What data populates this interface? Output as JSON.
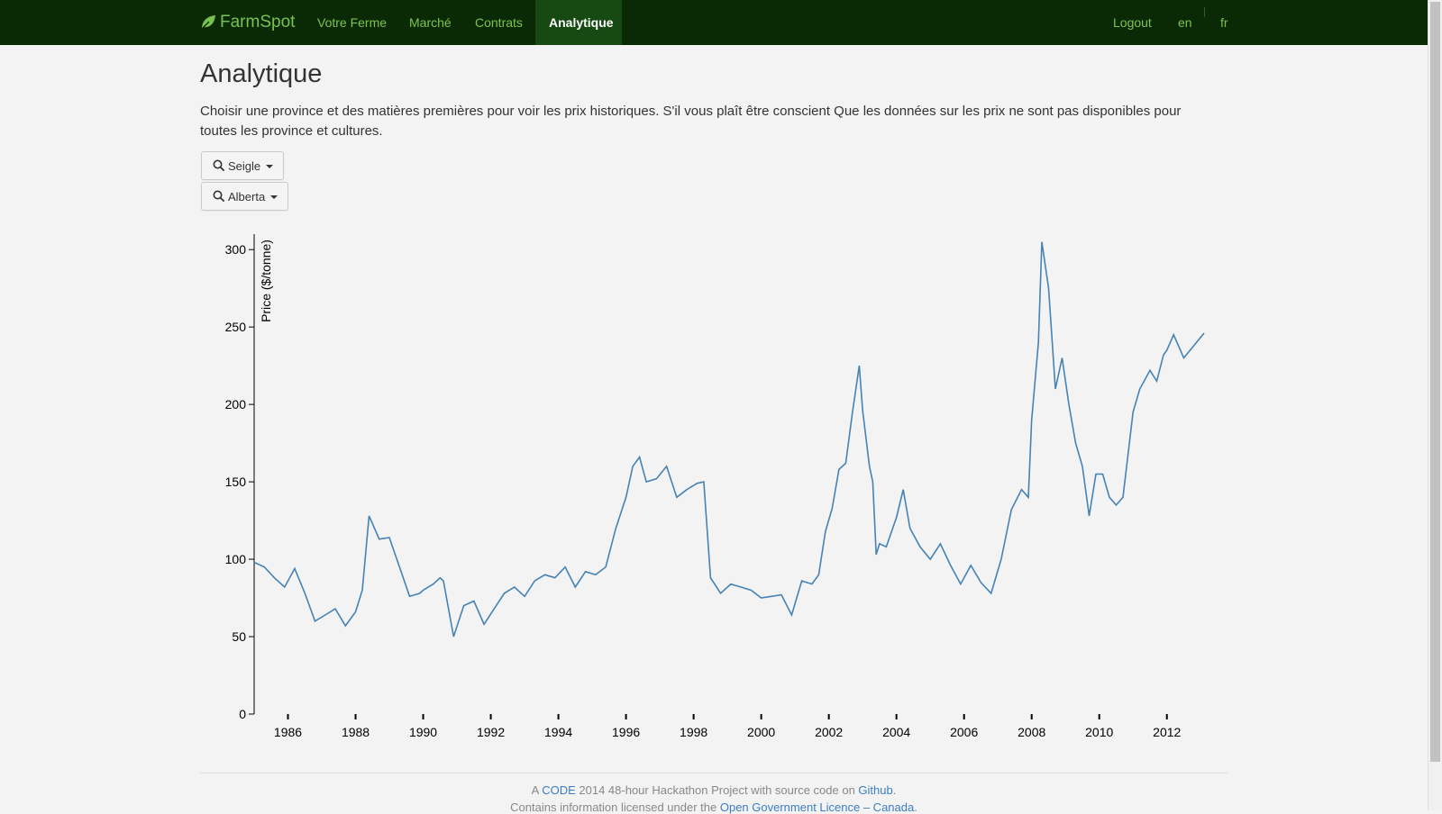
{
  "nav": {
    "brand": "FarmSpot",
    "items": [
      {
        "label": "Votre Ferme",
        "active": false
      },
      {
        "label": "Marché",
        "active": false
      },
      {
        "label": "Contrats",
        "active": false
      },
      {
        "label": "Analytique",
        "active": true
      }
    ],
    "logout": "Logout",
    "lang_en": "en",
    "lang_fr": "fr"
  },
  "page": {
    "title": "Analytique",
    "intro": "Choisir une province et des matières premières pour voir les prix historiques. S'il vous plaît être conscient Que les données sur les prix ne sont pas disponibles pour toutes les province et cultures.",
    "commodity_dropdown": "Seigle",
    "province_dropdown": "Alberta"
  },
  "chart_data": {
    "type": "line",
    "ylabel": "Price ($/tonne)",
    "xlabel": "",
    "ylim": [
      0,
      310
    ],
    "yticks": [
      0,
      50,
      100,
      150,
      200,
      250,
      300
    ],
    "xlim": [
      1985,
      2013.1
    ],
    "xticks": [
      "1986",
      "1988",
      "1990",
      "1992",
      "1994",
      "1996",
      "1998",
      "2000",
      "2002",
      "2004",
      "2006",
      "2008",
      "2010",
      "2012"
    ],
    "line_color": "#4682b4",
    "series": [
      {
        "x": [
          1985.0,
          1985.3,
          1985.6,
          1985.9,
          1986.2,
          1986.5,
          1986.8,
          1987.1,
          1987.4,
          1987.7,
          1988.0,
          1988.2,
          1988.4,
          1988.7,
          1989.0,
          1989.3,
          1989.6,
          1989.9,
          1990.0,
          1990.3,
          1990.5,
          1990.6,
          1990.9,
          1991.2,
          1991.5,
          1991.8,
          1992.1,
          1992.4,
          1992.7,
          1993.0,
          1993.3,
          1993.6,
          1993.9,
          1994.2,
          1994.5,
          1994.8,
          1995.1,
          1995.4,
          1995.7,
          1996.0,
          1996.2,
          1996.4,
          1996.6,
          1996.9,
          1997.2,
          1997.5,
          1997.8,
          1998.1,
          1998.3,
          1998.5,
          1998.8,
          1999.1,
          1999.4,
          1999.7,
          2000.0,
          2000.3,
          2000.6,
          2000.9,
          2001.2,
          2001.5,
          2001.7,
          2001.9,
          2002.1,
          2002.3,
          2002.5,
          2002.7,
          2002.9,
          2003.0,
          2003.2,
          2003.3,
          2003.4,
          2003.5,
          2003.7,
          2004.0,
          2004.2,
          2004.4,
          2004.7,
          2005.0,
          2005.3,
          2005.6,
          2005.9,
          2006.2,
          2006.5,
          2006.8,
          2007.1,
          2007.4,
          2007.7,
          2007.9,
          2008.0,
          2008.2,
          2008.3,
          2008.5,
          2008.7,
          2008.9,
          2009.1,
          2009.3,
          2009.5,
          2009.7,
          2009.9,
          2010.1,
          2010.3,
          2010.5,
          2010.7,
          2011.0,
          2011.2,
          2011.5,
          2011.7,
          2011.9,
          2012.0,
          2012.2,
          2012.5,
          2013.1
        ],
        "values": [
          98,
          95,
          88,
          82,
          94,
          78,
          60,
          64,
          68,
          57,
          66,
          80,
          128,
          113,
          114,
          95,
          76,
          78,
          80,
          84,
          88,
          86,
          50,
          70,
          73,
          58,
          68,
          78,
          82,
          76,
          86,
          90,
          88,
          95,
          82,
          92,
          90,
          95,
          120,
          140,
          160,
          166,
          150,
          152,
          160,
          140,
          145,
          149,
          150,
          88,
          78,
          84,
          82,
          80,
          75,
          76,
          77,
          64,
          86,
          84,
          90,
          118,
          133,
          158,
          162,
          195,
          225,
          196,
          160,
          150,
          103,
          110,
          108,
          127,
          145,
          120,
          108,
          100,
          110,
          96,
          84,
          96,
          85,
          78,
          100,
          132,
          145,
          140,
          190,
          240,
          305,
          275,
          210,
          230,
          200,
          175,
          160,
          128,
          155,
          155,
          140,
          135,
          140,
          195,
          210,
          222,
          215,
          232,
          235,
          245,
          230,
          246
        ]
      }
    ]
  },
  "footer": {
    "line1_prefix": "A ",
    "line1_link1": "CODE",
    "line1_mid": " 2014 48-hour Hackathon Project with source code on ",
    "line1_link2": "Github",
    "line1_suffix": ".",
    "line2_prefix": "Contains information licensed under the ",
    "line2_link": "Open Government Licence – Canada",
    "line2_suffix": "."
  }
}
